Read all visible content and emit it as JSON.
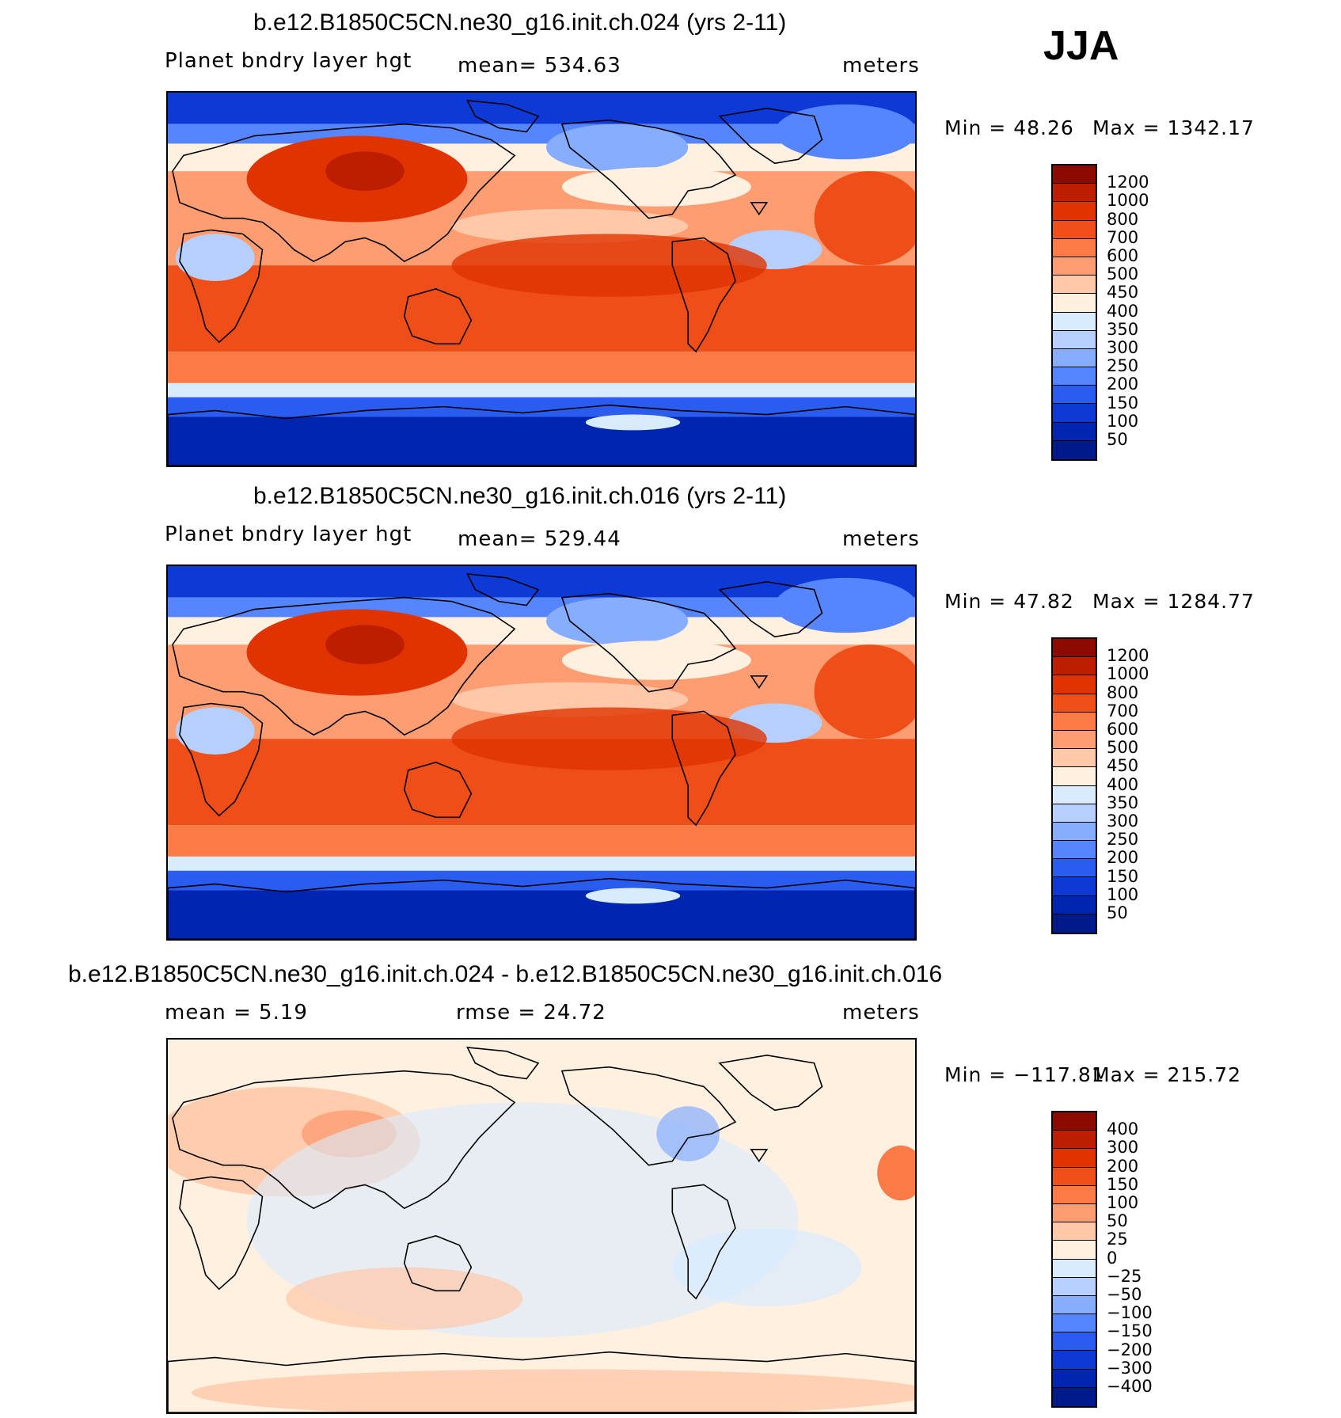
{
  "season": "JJA",
  "panels": [
    {
      "title": "b.e12.B1850C5CN.ne30_g16.init.ch.024 (yrs 2-11)",
      "left_label": "Planet bndry layer hgt",
      "center_label": "mean=  534.63",
      "right_label": "meters",
      "min_text": "Min =   48.26",
      "max_text": "Max  =  1342.17",
      "colorbar": {
        "labels": [
          "1200",
          "1000",
          "800",
          "700",
          "600",
          "500",
          "450",
          "400",
          "350",
          "300",
          "250",
          "200",
          "150",
          "100",
          "50"
        ],
        "colors": [
          "#8c0a00",
          "#bd1e00",
          "#e03300",
          "#f04e19",
          "#fb7a45",
          "#fe9d72",
          "#ffc8a8",
          "#fff0e0",
          "#d9ebff",
          "#b5d0ff",
          "#86adff",
          "#5585ff",
          "#2a5cf0",
          "#0d3ad6",
          "#0025b0",
          "#001a8a"
        ]
      },
      "field_type": "absolute"
    },
    {
      "title": "b.e12.B1850C5CN.ne30_g16.init.ch.016 (yrs 2-11)",
      "left_label": "Planet bndry layer hgt",
      "center_label": "mean=  529.44",
      "right_label": "meters",
      "min_text": "Min =   47.82",
      "max_text": "Max  =  1284.77",
      "colorbar": {
        "labels": [
          "1200",
          "1000",
          "800",
          "700",
          "600",
          "500",
          "450",
          "400",
          "350",
          "300",
          "250",
          "200",
          "150",
          "100",
          "50"
        ],
        "colors": [
          "#8c0a00",
          "#bd1e00",
          "#e03300",
          "#f04e19",
          "#fb7a45",
          "#fe9d72",
          "#ffc8a8",
          "#fff0e0",
          "#d9ebff",
          "#b5d0ff",
          "#86adff",
          "#5585ff",
          "#2a5cf0",
          "#0d3ad6",
          "#0025b0",
          "#001a8a"
        ]
      },
      "field_type": "absolute"
    },
    {
      "title": "b.e12.B1850C5CN.ne30_g16.init.ch.024 - b.e12.B1850C5CN.ne30_g16.init.ch.016",
      "left_label": "mean =    5.19",
      "center_label": "rmse =   24.72",
      "right_label": "meters",
      "min_text": "Min = −117.81",
      "max_text": "Max  =  215.72",
      "colorbar": {
        "labels": [
          "400",
          "300",
          "200",
          "150",
          "100",
          "50",
          "25",
          "0",
          "−25",
          "−50",
          "−100",
          "−150",
          "−200",
          "−300",
          "−400"
        ],
        "colors": [
          "#8c0a00",
          "#bd1e00",
          "#e03300",
          "#f04e19",
          "#fb7a45",
          "#fe9d72",
          "#ffc8a8",
          "#fff0e0",
          "#d9ebff",
          "#b5d0ff",
          "#86adff",
          "#5585ff",
          "#2a5cf0",
          "#0d3ad6",
          "#0025b0",
          "#001a8a"
        ]
      },
      "field_type": "difference"
    }
  ]
}
